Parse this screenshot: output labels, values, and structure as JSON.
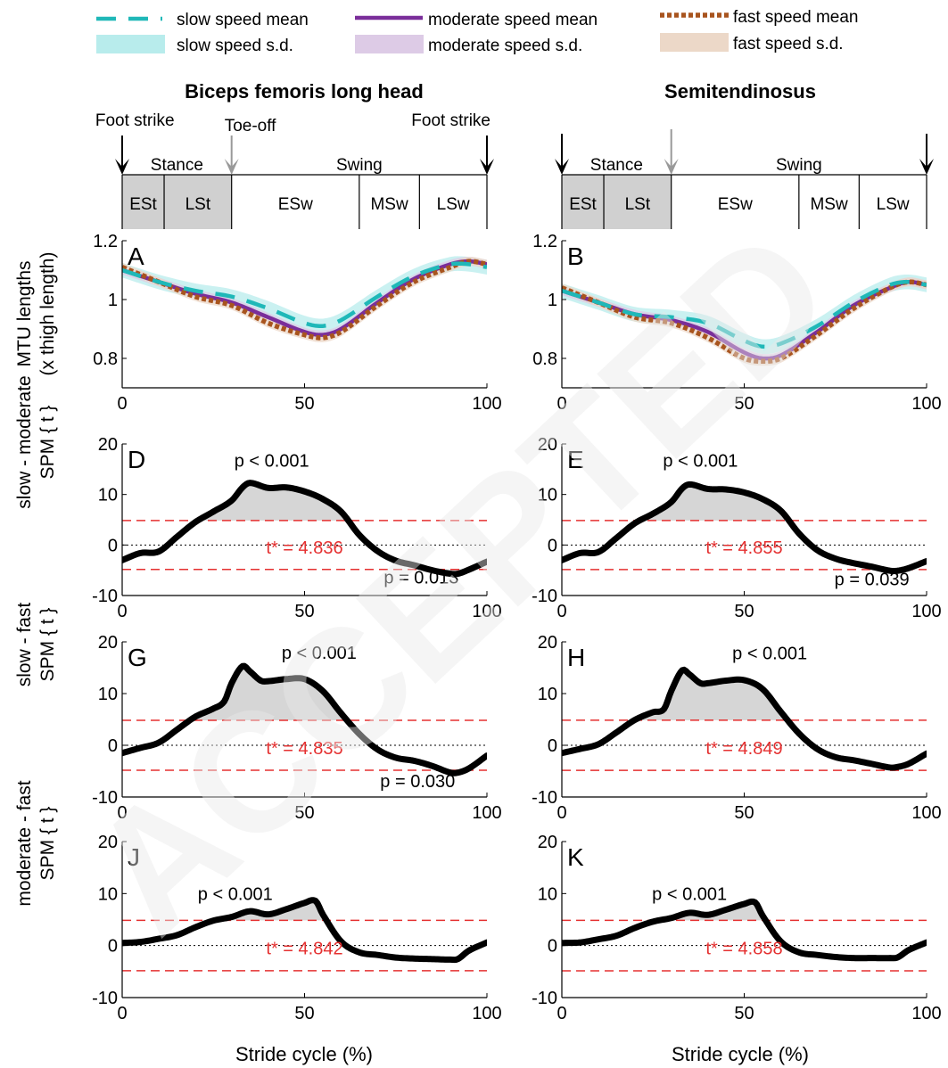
{
  "legend": {
    "slow_mean": "slow speed mean",
    "moderate_mean": "moderate speed mean",
    "fast_mean": "fast speed mean",
    "slow_sd": "slow speed s.d.",
    "moderate_sd": "moderate speed s.d.",
    "fast_sd": "fast speed s.d."
  },
  "colors": {
    "slow": "#1fb8b8",
    "slow_band": "#b8ecec",
    "moderate": "#7a2e9a",
    "moderate_band": "#ddcbe6",
    "fast": "#a8541e",
    "fast_band": "#ecd8c8",
    "threshold": "#e53030",
    "phase_fill": "#d0d0d0",
    "watermark": "#e8e8e8"
  },
  "columns": {
    "left": {
      "title": "Biceps femoris long head"
    },
    "right": {
      "title": "Semitendinosus"
    }
  },
  "gait": {
    "foot_strike": "Foot strike",
    "toe_off": "Toe-off",
    "stance": "Stance",
    "swing": "Swing",
    "phases": [
      "ESt",
      "LSt",
      "ESw",
      "MSw",
      "LSw"
    ]
  },
  "ylabels": {
    "mtu": [
      "MTU lengths",
      "(x thigh length)"
    ],
    "sm": [
      "slow - moderate",
      "SPM { t }"
    ],
    "sf": [
      "slow - fast",
      "SPM { t }"
    ],
    "mf": [
      "moderate - fast",
      "SPM { t }"
    ]
  },
  "xlabel": "Stride cycle (%)",
  "watermark": "ACCEPTED",
  "chart_data": [
    {
      "id": "A",
      "type": "line",
      "panel_label": "A",
      "muscle": "Biceps femoris long head",
      "xlim": [
        0,
        100
      ],
      "ylim": [
        0.7,
        1.2
      ],
      "xticks": [
        "0",
        "50",
        "100"
      ],
      "yticks": [
        "0.8",
        "1",
        "1.2"
      ],
      "series": [
        {
          "name": "slow speed mean",
          "x": [
            0,
            10,
            20,
            30,
            40,
            50,
            55,
            60,
            70,
            80,
            90,
            95,
            100
          ],
          "y": [
            1.1,
            1.06,
            1.03,
            1.01,
            0.97,
            0.92,
            0.91,
            0.93,
            1.01,
            1.08,
            1.12,
            1.12,
            1.11
          ],
          "sd": 0.025
        },
        {
          "name": "moderate speed mean",
          "x": [
            0,
            10,
            20,
            30,
            40,
            50,
            55,
            60,
            70,
            80,
            90,
            95,
            100
          ],
          "y": [
            1.1,
            1.06,
            1.02,
            0.99,
            0.94,
            0.89,
            0.88,
            0.9,
            0.99,
            1.07,
            1.12,
            1.13,
            1.12
          ],
          "sd": 0.015
        },
        {
          "name": "fast speed mean",
          "x": [
            0,
            10,
            20,
            30,
            40,
            50,
            55,
            60,
            70,
            80,
            90,
            95,
            100
          ],
          "y": [
            1.11,
            1.06,
            1.01,
            0.98,
            0.92,
            0.88,
            0.87,
            0.89,
            0.98,
            1.06,
            1.11,
            1.13,
            1.12
          ],
          "sd": 0.015
        }
      ]
    },
    {
      "id": "B",
      "type": "line",
      "panel_label": "B",
      "muscle": "Semitendinosus",
      "xlim": [
        0,
        100
      ],
      "ylim": [
        0.7,
        1.2
      ],
      "xticks": [
        "0",
        "50",
        "100"
      ],
      "yticks": [
        "0.8",
        "1",
        "1.2"
      ],
      "series": [
        {
          "name": "slow speed mean",
          "x": [
            0,
            10,
            20,
            30,
            40,
            50,
            55,
            60,
            70,
            80,
            90,
            95,
            100
          ],
          "y": [
            1.03,
            0.99,
            0.95,
            0.94,
            0.92,
            0.86,
            0.84,
            0.85,
            0.91,
            0.99,
            1.05,
            1.06,
            1.05
          ],
          "sd": 0.025
        },
        {
          "name": "moderate speed mean",
          "x": [
            0,
            10,
            20,
            30,
            40,
            50,
            55,
            60,
            70,
            80,
            90,
            95,
            100
          ],
          "y": [
            1.03,
            0.99,
            0.95,
            0.93,
            0.89,
            0.82,
            0.8,
            0.81,
            0.89,
            0.98,
            1.04,
            1.06,
            1.05
          ],
          "sd": 0.015
        },
        {
          "name": "fast speed mean",
          "x": [
            0,
            10,
            20,
            30,
            40,
            50,
            55,
            60,
            70,
            80,
            90,
            95,
            100
          ],
          "y": [
            1.04,
            0.99,
            0.94,
            0.92,
            0.87,
            0.8,
            0.79,
            0.8,
            0.88,
            0.97,
            1.04,
            1.06,
            1.05
          ],
          "sd": 0.015
        }
      ]
    },
    {
      "id": "D",
      "type": "line",
      "panel_label": "D",
      "comparison": "slow - moderate",
      "muscle": "Biceps femoris long head",
      "xlim": [
        0,
        100
      ],
      "ylim": [
        -10,
        20
      ],
      "xticks": [
        "0",
        "50",
        "100"
      ],
      "yticks": [
        "-10",
        "0",
        "10",
        "20"
      ],
      "threshold": 4.836,
      "threshold_label": "t* = 4.836",
      "x": [
        0,
        5,
        10,
        15,
        20,
        25,
        30,
        33,
        35,
        40,
        45,
        50,
        55,
        60,
        65,
        70,
        75,
        80,
        85,
        90,
        92,
        95,
        100
      ],
      "y": [
        -3,
        -1.6,
        -1.3,
        1.6,
        4.5,
        6.6,
        8.8,
        11.4,
        12.3,
        11.3,
        11.4,
        10.6,
        9.1,
        6.6,
        2,
        -1.2,
        -3.1,
        -4,
        -5,
        -5.7,
        -5.7,
        -4.9,
        -3.3
      ],
      "annotations": [
        {
          "text": "p < 0.001",
          "x": 41,
          "y": 15.5
        },
        {
          "text": "p = 0.013",
          "x": 82,
          "y": -7.6
        }
      ]
    },
    {
      "id": "E",
      "type": "line",
      "panel_label": "E",
      "comparison": "slow - moderate",
      "muscle": "Semitendinosus",
      "xlim": [
        0,
        100
      ],
      "ylim": [
        -10,
        20
      ],
      "xticks": [
        "0",
        "50",
        "100"
      ],
      "yticks": [
        "-10",
        "0",
        "10",
        "20"
      ],
      "threshold": 4.855,
      "threshold_label": "t* = 4.855",
      "x": [
        0,
        5,
        10,
        15,
        20,
        25,
        30,
        33,
        35,
        40,
        45,
        50,
        55,
        60,
        65,
        70,
        75,
        80,
        85,
        90,
        92,
        95,
        100
      ],
      "y": [
        -3,
        -1.6,
        -1.4,
        1.4,
        4.3,
        6.2,
        8.5,
        11.2,
        12,
        11.1,
        11,
        10.4,
        9.1,
        6.8,
        2.3,
        -1,
        -2.7,
        -3.6,
        -4.3,
        -5.1,
        -5.1,
        -4.6,
        -3.2
      ],
      "annotations": [
        {
          "text": "p < 0.001",
          "x": 38,
          "y": 15.5
        },
        {
          "text": "p = 0.039",
          "x": 85,
          "y": -8
        }
      ]
    },
    {
      "id": "G",
      "type": "line",
      "panel_label": "G",
      "comparison": "slow - fast",
      "muscle": "Biceps femoris long head",
      "xlim": [
        0,
        100
      ],
      "ylim": [
        -10,
        20
      ],
      "xticks": [
        "0",
        "50",
        "100"
      ],
      "yticks": [
        "-10",
        "0",
        "10",
        "20"
      ],
      "threshold": 4.835,
      "threshold_label": "t* = 4.835",
      "x": [
        0,
        5,
        10,
        15,
        20,
        25,
        28,
        30,
        33,
        35,
        38,
        40,
        45,
        50,
        55,
        60,
        65,
        70,
        75,
        80,
        85,
        90,
        92,
        95,
        100
      ],
      "y": [
        -1.5,
        -0.5,
        0.5,
        3,
        5.5,
        7.1,
        8.5,
        12,
        15.3,
        14.3,
        12.5,
        12.4,
        12.8,
        12.8,
        10.5,
        6.2,
        2.2,
        -0.8,
        -2.4,
        -3,
        -4,
        -5.3,
        -5.3,
        -4.5,
        -2
      ],
      "annotations": [
        {
          "text": "p < 0.001",
          "x": 54,
          "y": 16.7
        },
        {
          "text": "p = 0.030",
          "x": 81,
          "y": -8.1
        }
      ]
    },
    {
      "id": "H",
      "type": "line",
      "panel_label": "H",
      "comparison": "slow - fast",
      "muscle": "Semitendinosus",
      "xlim": [
        0,
        100
      ],
      "ylim": [
        -10,
        20
      ],
      "xticks": [
        "0",
        "50",
        "100"
      ],
      "yticks": [
        "-10",
        "0",
        "10",
        "20"
      ],
      "threshold": 4.849,
      "threshold_label": "t* = 4.849",
      "x": [
        0,
        5,
        10,
        15,
        20,
        25,
        28,
        30,
        33,
        35,
        38,
        40,
        45,
        50,
        55,
        60,
        65,
        70,
        75,
        80,
        85,
        90,
        92,
        95,
        100
      ],
      "y": [
        -1.5,
        -0.7,
        0.2,
        2.5,
        4.9,
        6.4,
        7,
        10.5,
        14.5,
        13.7,
        12,
        12,
        12.5,
        12.6,
        10.9,
        6.5,
        2.3,
        -0.7,
        -2.3,
        -2.9,
        -3.6,
        -4.3,
        -4.2,
        -3.6,
        -1.6
      ],
      "annotations": [
        {
          "text": "p < 0.001",
          "x": 57,
          "y": 16.6
        }
      ]
    },
    {
      "id": "J",
      "type": "line",
      "panel_label": "J",
      "comparison": "moderate - fast",
      "muscle": "Biceps femoris long head",
      "xlim": [
        0,
        100
      ],
      "ylim": [
        -10,
        20
      ],
      "xticks": [
        "0",
        "50",
        "100"
      ],
      "yticks": [
        "-10",
        "0",
        "10",
        "20"
      ],
      "threshold": 4.842,
      "threshold_label": "t* = 4.842",
      "x": [
        0,
        5,
        10,
        15,
        20,
        25,
        30,
        35,
        40,
        45,
        50,
        53,
        55,
        60,
        65,
        70,
        75,
        80,
        85,
        90,
        92,
        95,
        100
      ],
      "y": [
        0.5,
        0.7,
        1.3,
        2,
        3.5,
        4.8,
        5.5,
        6.6,
        6,
        7,
        8.2,
        8.6,
        6,
        0.8,
        -1.3,
        -1.8,
        -2.3,
        -2.5,
        -2.6,
        -2.7,
        -2.6,
        -1,
        0.6
      ],
      "annotations": [
        {
          "text": "p < 0.001",
          "x": 31,
          "y": 8.8
        }
      ]
    },
    {
      "id": "K",
      "type": "line",
      "panel_label": "K",
      "comparison": "moderate - fast",
      "muscle": "Semitendinosus",
      "xlim": [
        0,
        100
      ],
      "ylim": [
        -10,
        20
      ],
      "xticks": [
        "0",
        "50",
        "100"
      ],
      "yticks": [
        "-10",
        "0",
        "10",
        "20"
      ],
      "threshold": 4.858,
      "threshold_label": "t* = 4.858",
      "x": [
        0,
        5,
        10,
        15,
        20,
        25,
        30,
        35,
        40,
        45,
        50,
        53,
        55,
        60,
        65,
        70,
        75,
        80,
        85,
        90,
        92,
        95,
        100
      ],
      "y": [
        0.5,
        0.6,
        1.2,
        1.9,
        3.4,
        4.6,
        5.3,
        6.3,
        5.9,
        6.9,
        8,
        8.3,
        5.8,
        0.8,
        -1.3,
        -1.8,
        -2.2,
        -2.4,
        -2.4,
        -2.4,
        -2.3,
        -0.9,
        0.6
      ],
      "annotations": [
        {
          "text": "p < 0.001",
          "x": 35,
          "y": 8.8
        }
      ]
    }
  ]
}
